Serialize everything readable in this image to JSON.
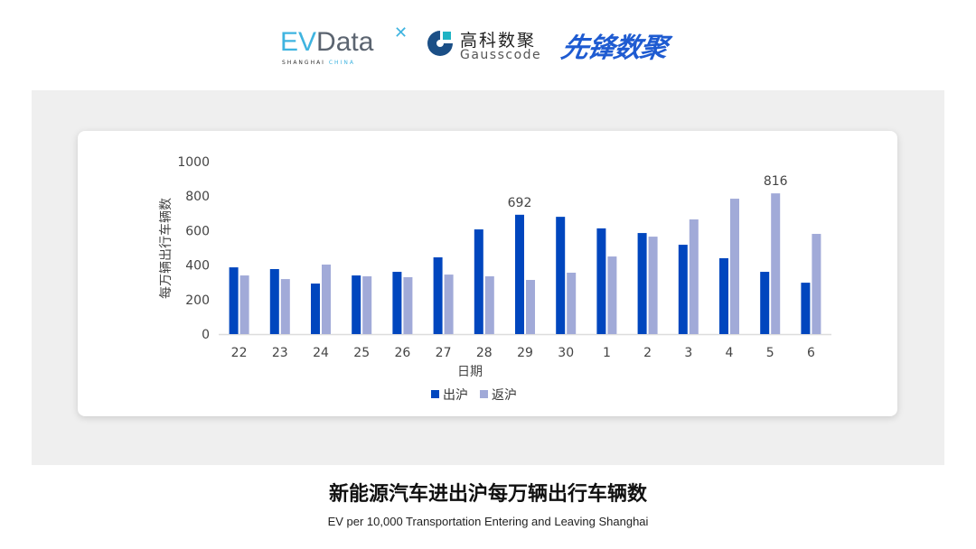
{
  "logos": {
    "evdata": {
      "text": "EVData",
      "sub": "SHANGHAI CHINA"
    },
    "gausscode": {
      "cn": "高科数聚",
      "en": "Gausscode"
    },
    "xianfeng": {
      "text": "先锋数聚"
    }
  },
  "title": "新能源汽车进出沪每万辆出行车辆数",
  "subtitle": "EV per 10,000 Transportation Entering and Leaving Shanghai",
  "colors": {
    "out": "#0046be",
    "in": "#a1aad8",
    "panel": "#efefef"
  },
  "chart_data": {
    "type": "bar",
    "xlabel": "日期",
    "ylabel": "每万辆出行车辆数",
    "ylim": [
      0,
      1000
    ],
    "yticks": [
      0,
      200,
      400,
      600,
      800,
      1000
    ],
    "grid": false,
    "legend": "bottom",
    "categories": [
      "22",
      "23",
      "24",
      "25",
      "26",
      "27",
      "28",
      "29",
      "30",
      "1",
      "2",
      "3",
      "4",
      "5",
      "6"
    ],
    "series": [
      {
        "name": "出沪",
        "values": [
          387,
          377,
          293,
          340,
          361,
          445,
          607,
          692,
          680,
          613,
          586,
          518,
          440,
          361,
          298
        ]
      },
      {
        "name": "返沪",
        "values": [
          340,
          319,
          403,
          335,
          330,
          345,
          335,
          314,
          356,
          450,
          565,
          665,
          785,
          816,
          581
        ]
      }
    ],
    "annotations": [
      {
        "category": "29",
        "series": "出沪",
        "text": "692"
      },
      {
        "category": "5",
        "series": "返沪",
        "text": "816"
      }
    ]
  }
}
